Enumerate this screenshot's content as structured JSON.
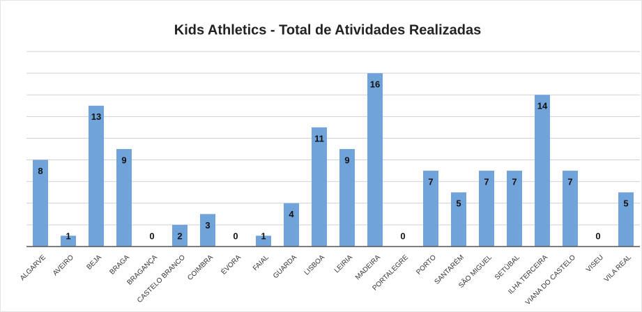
{
  "chart_data": {
    "type": "bar",
    "title": "Kids Athletics - Total de Atividades Realizadas",
    "categories": [
      "ALGARVE",
      "AVEIRO",
      "BEJA",
      "BRAGA",
      "BRAGANÇA",
      "CASTELO BRANCO",
      "COIMBRA",
      "ÉVORA",
      "FAIAL",
      "GUARDA",
      "LISBOA",
      "LEIRIA",
      "MADEIRA",
      "PORTALEGRE",
      "PORTO",
      "SANTARÉM",
      "SÃO MIGUEL",
      "SETÚBAL",
      "ILHA TERCEIRA",
      "VIANA DO CASTELO",
      "VISEU",
      "VILA REAL"
    ],
    "values": [
      8,
      1,
      13,
      9,
      0,
      2,
      3,
      0,
      1,
      4,
      11,
      9,
      16,
      0,
      7,
      5,
      7,
      7,
      14,
      7,
      0,
      5
    ],
    "color": "#6fa3d9",
    "ylim": [
      0,
      18
    ],
    "yticks": [
      0,
      2,
      4,
      6,
      8,
      10,
      12,
      14,
      16,
      18
    ],
    "grid": true
  }
}
